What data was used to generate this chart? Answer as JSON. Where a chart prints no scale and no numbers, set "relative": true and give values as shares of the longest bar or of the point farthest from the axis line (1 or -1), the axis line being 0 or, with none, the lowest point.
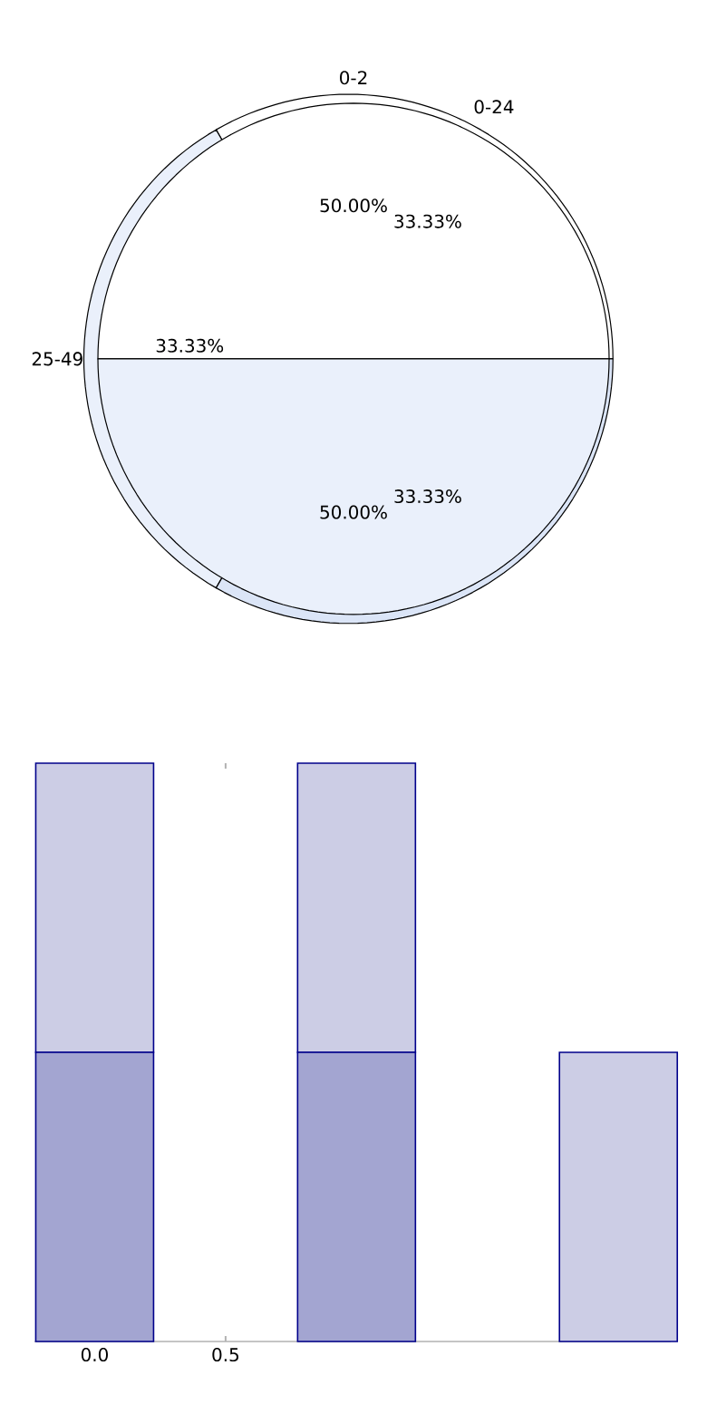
{
  "chart_data": [
    {
      "type": "pie",
      "categories": [
        "0-2",
        null
      ],
      "values": [
        50,
        50
      ],
      "colors": [
        "#ffffff",
        "#eaf0fb"
      ],
      "value_labels": [
        "50.00%",
        "50.00%"
      ]
    },
    {
      "type": "pie",
      "categories": [
        "0-24",
        "25-49",
        null
      ],
      "values": [
        33.33,
        33.33,
        33.33
      ],
      "colors": [
        "#ffffff",
        "#eaf0fb",
        "#dbe5f7"
      ],
      "value_labels": [
        "33.33%",
        "33.33%",
        "33.33%"
      ]
    },
    {
      "type": "bar",
      "stacked": true,
      "relative": true,
      "x": [
        0,
        1,
        2
      ],
      "xlim": [
        -0.23,
        2.2
      ],
      "xticks": [
        {
          "value": 0,
          "label": "0.0"
        },
        {
          "value": 0.5,
          "label": "0.5"
        }
      ],
      "series": [
        {
          "color": "#a3a5d1",
          "values": [
            0.5,
            0.5,
            0
          ]
        },
        {
          "color": "#cccde5",
          "values": [
            0.5,
            0.5,
            0.5
          ]
        }
      ]
    }
  ]
}
